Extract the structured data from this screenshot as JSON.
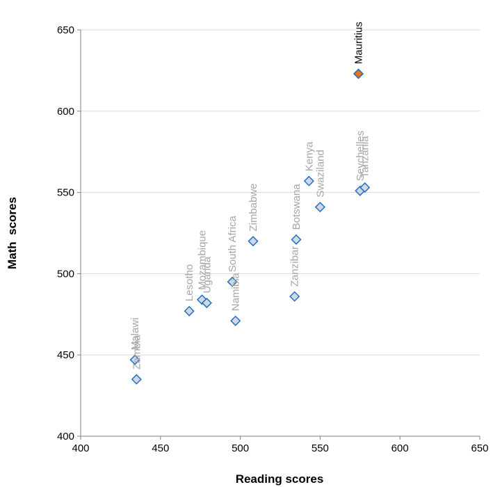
{
  "chart_data": {
    "type": "scatter",
    "title": "",
    "xlabel": "Reading scores",
    "ylabel": "Math  scores",
    "xlim": [
      400,
      650
    ],
    "ylim": [
      400,
      650
    ],
    "xticks": [
      "400",
      "450",
      "500",
      "550",
      "600",
      "650"
    ],
    "yticks": [
      "400",
      "450",
      "500",
      "550",
      "600",
      "650"
    ],
    "grid": "horizontal",
    "legend": "none",
    "colors": {
      "marker_fill": "#d0d8e6",
      "marker_edge": "#1f6fc0",
      "highlight_fill": "#e8731e",
      "label_gray": "#a6a6a6",
      "label_highlight": "#000000",
      "gridline": "#d9d9d9",
      "axis": "#7f7f7f"
    },
    "points": [
      {
        "label": "Malawi",
        "x": 434,
        "y": 447
      },
      {
        "label": "Zambia",
        "x": 435,
        "y": 435
      },
      {
        "label": "Lesotho",
        "x": 468,
        "y": 477
      },
      {
        "label": "Mozambique",
        "x": 476,
        "y": 484
      },
      {
        "label": "Uganda",
        "x": 479,
        "y": 482
      },
      {
        "label": "South Africa",
        "x": 495,
        "y": 495
      },
      {
        "label": "Namibia",
        "x": 497,
        "y": 471
      },
      {
        "label": "Zimbabwe",
        "x": 508,
        "y": 520
      },
      {
        "label": "Zanzibar",
        "x": 534,
        "y": 486
      },
      {
        "label": "Botswana",
        "x": 535,
        "y": 521
      },
      {
        "label": "Kenya",
        "x": 543,
        "y": 557
      },
      {
        "label": "Swaziland",
        "x": 550,
        "y": 541
      },
      {
        "label": "Mauritius",
        "x": 574,
        "y": 623,
        "highlight": true
      },
      {
        "label": "Seychelles",
        "x": 575,
        "y": 551
      },
      {
        "label": "Tanzania",
        "x": 578,
        "y": 553
      }
    ]
  }
}
